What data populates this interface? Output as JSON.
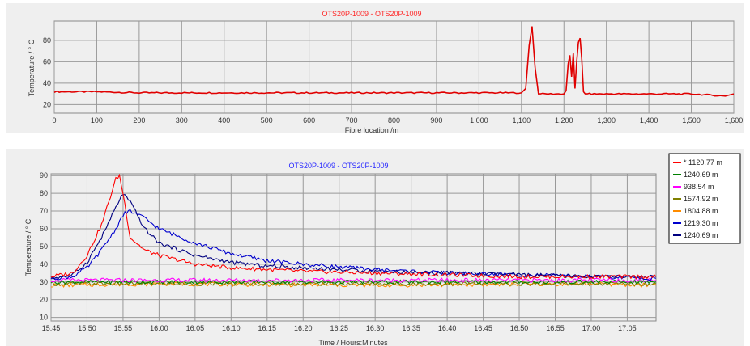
{
  "chart_data": [
    {
      "type": "line",
      "title": "OTS20P-1009 - OTS20P-1009",
      "title_color": "#ff2a2a",
      "xlabel": "Fibre location /m",
      "ylabel": "Temperature / ° C",
      "xlim": [
        0,
        1600
      ],
      "ylim": [
        12,
        98
      ],
      "grid": true,
      "x_ticks": [
        0,
        100,
        200,
        300,
        400,
        500,
        600,
        700,
        800,
        900,
        1000,
        1100,
        1200,
        1300,
        1400,
        1500,
        1600
      ],
      "x_tick_labels": [
        "0",
        "100",
        "200",
        "300",
        "400",
        "500",
        "600",
        "700",
        "800",
        "900",
        "1,000",
        "1,100",
        "1,200",
        "1,300",
        "1,400",
        "1,500",
        "1,600"
      ],
      "y_ticks": [
        20,
        40,
        60,
        80
      ],
      "y_tick_labels": [
        "20",
        "40",
        "60",
        "80"
      ],
      "series": [
        {
          "color": "#e00000",
          "x": [
            0,
            100,
            200,
            300,
            400,
            500,
            600,
            700,
            800,
            900,
            1000,
            1050,
            1100,
            1110,
            1118,
            1125,
            1132,
            1140,
            1150,
            1200,
            1205,
            1210,
            1214,
            1218,
            1222,
            1226,
            1230,
            1234,
            1238,
            1242,
            1246,
            1250,
            1260,
            1300,
            1400,
            1500,
            1580,
            1600
          ],
          "y": [
            32,
            32,
            31,
            31,
            31,
            31,
            31,
            31,
            31,
            31,
            31,
            31,
            31,
            35,
            75,
            93,
            55,
            30,
            30,
            30,
            33,
            58,
            66,
            46,
            68,
            35,
            60,
            78,
            82,
            62,
            32,
            30,
            30,
            30,
            30,
            30,
            28,
            30
          ]
        }
      ]
    },
    {
      "type": "line",
      "title": "OTS20P-1009 - OTS20P-1009",
      "title_color": "#2a2aff",
      "xlabel": "Time / Hours:Minutes",
      "ylabel": "Temperature / ° C",
      "xlim": [
        "15:45",
        "17:09"
      ],
      "ylim": [
        8,
        91
      ],
      "grid": true,
      "legend_position": "right",
      "x_tick_labels": [
        "15:45",
        "15:50",
        "15:55",
        "16:00",
        "16:05",
        "16:10",
        "16:15",
        "16:20",
        "16:25",
        "16:30",
        "16:35",
        "16:40",
        "16:45",
        "16:50",
        "16:55",
        "17:00",
        "17:05"
      ],
      "y_tick_labels": [
        "10",
        "20",
        "30",
        "40",
        "50",
        "60",
        "70",
        "80",
        "90"
      ],
      "series": [
        {
          "name": "* 1120.77 m",
          "color": "#ff0000",
          "x": [
            "15:45",
            "15:48",
            "15:50",
            "15:52",
            "15:53",
            "15:54",
            "15:54:30",
            "15:55",
            "15:56",
            "15:58",
            "16:00",
            "16:05",
            "16:10",
            "16:20",
            "16:30",
            "16:40",
            "16:50",
            "17:00",
            "17:09"
          ],
          "y": [
            33,
            35,
            45,
            62,
            75,
            88,
            90,
            80,
            55,
            48,
            45,
            40,
            38,
            36,
            35,
            34,
            33,
            33,
            33
          ]
        },
        {
          "name": "1240.69 m",
          "color": "#008000",
          "x": [
            "15:45",
            "16:00",
            "16:30",
            "17:00",
            "17:09"
          ],
          "y": [
            30,
            30,
            30,
            30,
            30
          ]
        },
        {
          "name": "938.54 m",
          "color": "#ff00ff",
          "x": [
            "15:45",
            "16:00",
            "16:30",
            "17:00",
            "17:09"
          ],
          "y": [
            31,
            31,
            31,
            31,
            31
          ]
        },
        {
          "name": "1574.92 m",
          "color": "#808000",
          "x": [
            "15:45",
            "16:00",
            "16:30",
            "17:00",
            "17:09"
          ],
          "y": [
            29,
            29,
            29,
            29,
            29
          ]
        },
        {
          "name": "1804.88 m",
          "color": "#ff8c00",
          "x": [
            "15:45",
            "16:00",
            "16:30",
            "17:00",
            "17:09"
          ],
          "y": [
            28,
            29,
            28,
            29,
            28
          ]
        },
        {
          "name": "1219.30 m",
          "color": "#0000cd",
          "x": [
            "15:45",
            "15:48",
            "15:50",
            "15:52",
            "15:54",
            "15:55",
            "15:56",
            "15:58",
            "16:00",
            "16:05",
            "16:10",
            "16:15",
            "16:20",
            "16:30",
            "16:40",
            "16:50",
            "17:00",
            "17:09"
          ],
          "y": [
            32,
            33,
            38,
            48,
            60,
            68,
            70,
            66,
            60,
            52,
            46,
            42,
            40,
            37,
            35,
            34,
            33,
            32
          ]
        },
        {
          "name": "1240.69 m",
          "color": "#000080",
          "x": [
            "15:45",
            "15:48",
            "15:50",
            "15:52",
            "15:54",
            "15:55",
            "15:56",
            "15:58",
            "16:00",
            "16:05",
            "16:10",
            "16:15",
            "16:20",
            "16:30",
            "16:40",
            "16:50",
            "17:00",
            "17:09"
          ],
          "y": [
            32,
            34,
            41,
            55,
            72,
            80,
            75,
            60,
            52,
            45,
            41,
            39,
            38,
            36,
            35,
            34,
            33,
            33
          ]
        }
      ]
    }
  ]
}
